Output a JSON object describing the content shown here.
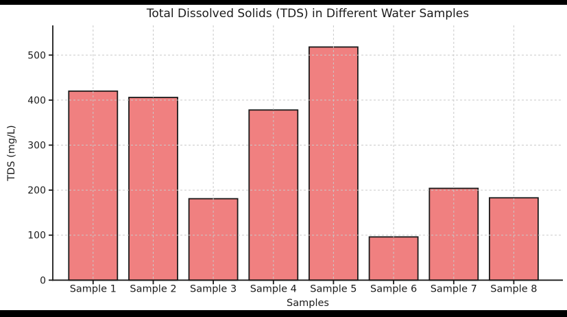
{
  "window": {
    "frame_color": "#000000",
    "figure_background": "#ffffff"
  },
  "chart_data": {
    "type": "bar",
    "title": "Total Dissolved Solids (TDS) in Different Water Samples",
    "xlabel": "Samples",
    "ylabel": "TDS (mg/L)",
    "categories": [
      "Sample 1",
      "Sample 2",
      "Sample 3",
      "Sample 4",
      "Sample 5",
      "Sample 6",
      "Sample 7",
      "Sample 8"
    ],
    "values": [
      420,
      406,
      181,
      378,
      518,
      96,
      204,
      183
    ],
    "yticks": [
      0,
      100,
      200,
      300,
      400,
      500
    ],
    "ylim": [
      0,
      566
    ],
    "grid": "on",
    "grid_style": "dashed",
    "grid_over_bars": true,
    "legend_position": "none",
    "bar_color": "#f08080",
    "bar_edge_color": "#1a1a1a",
    "grid_color": "#c9c9c9",
    "text_color": "#1a1a1a"
  }
}
